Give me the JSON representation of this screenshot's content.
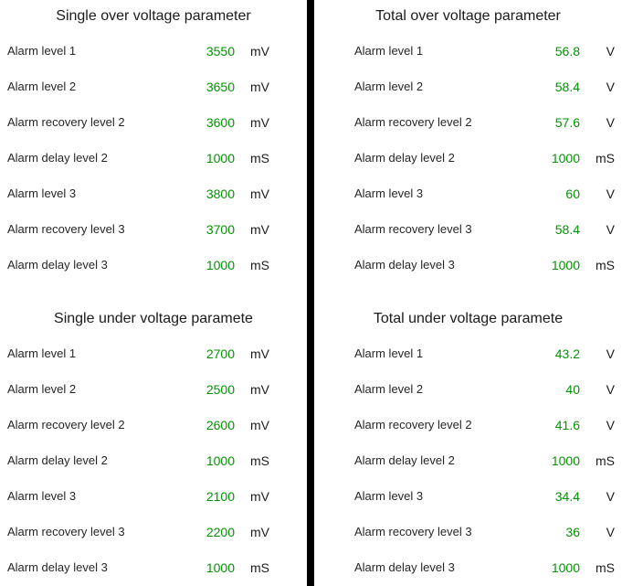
{
  "colors": {
    "background": "#ffffff",
    "divider": "#000000",
    "value_green": "#009500",
    "text": "#1b1b1b"
  },
  "panels": [
    {
      "title": "Single over voltage parameter",
      "rows": [
        {
          "label": "Alarm level 1",
          "value": "3550",
          "unit": "mV"
        },
        {
          "label": "Alarm level 2",
          "value": "3650",
          "unit": "mV"
        },
        {
          "label": "Alarm recovery level 2",
          "value": "3600",
          "unit": "mV"
        },
        {
          "label": "Alarm delay level 2",
          "value": "1000",
          "unit": "mS"
        },
        {
          "label": "Alarm level 3",
          "value": "3800",
          "unit": "mV"
        },
        {
          "label": "Alarm recovery level 3",
          "value": "3700",
          "unit": "mV"
        },
        {
          "label": "Alarm delay level 3",
          "value": "1000",
          "unit": "mS"
        }
      ]
    },
    {
      "title": "Total over voltage parameter",
      "rows": [
        {
          "label": "Alarm level 1",
          "value": "56.8",
          "unit": "V"
        },
        {
          "label": "Alarm level 2",
          "value": "58.4",
          "unit": "V"
        },
        {
          "label": "Alarm recovery level 2",
          "value": "57.6",
          "unit": "V"
        },
        {
          "label": "Alarm delay level 2",
          "value": "1000",
          "unit": "mS"
        },
        {
          "label": "Alarm level 3",
          "value": "60",
          "unit": "V"
        },
        {
          "label": "Alarm recovery level 3",
          "value": "58.4",
          "unit": "V"
        },
        {
          "label": "Alarm delay level 3",
          "value": "1000",
          "unit": "mS"
        }
      ]
    },
    {
      "title": "Single under voltage paramete",
      "rows": [
        {
          "label": "Alarm level 1",
          "value": "2700",
          "unit": "mV"
        },
        {
          "label": "Alarm level 2",
          "value": "2500",
          "unit": "mV"
        },
        {
          "label": "Alarm recovery level 2",
          "value": "2600",
          "unit": "mV"
        },
        {
          "label": "Alarm delay level 2",
          "value": "1000",
          "unit": "mS"
        },
        {
          "label": "Alarm level 3",
          "value": "2100",
          "unit": "mV"
        },
        {
          "label": "Alarm recovery level 3",
          "value": "2200",
          "unit": "mV"
        },
        {
          "label": "Alarm delay level 3",
          "value": "1000",
          "unit": "mS"
        }
      ]
    },
    {
      "title": "Total under voltage paramete",
      "rows": [
        {
          "label": "Alarm level 1",
          "value": "43.2",
          "unit": "V"
        },
        {
          "label": "Alarm level 2",
          "value": "40",
          "unit": "V"
        },
        {
          "label": "Alarm recovery level 2",
          "value": "41.6",
          "unit": "V"
        },
        {
          "label": "Alarm delay level 2",
          "value": "1000",
          "unit": "mS"
        },
        {
          "label": "Alarm level 3",
          "value": "34.4",
          "unit": "V"
        },
        {
          "label": "Alarm recovery level 3",
          "value": "36",
          "unit": "V"
        },
        {
          "label": "Alarm delay level 3",
          "value": "1000",
          "unit": "mS"
        }
      ]
    }
  ]
}
